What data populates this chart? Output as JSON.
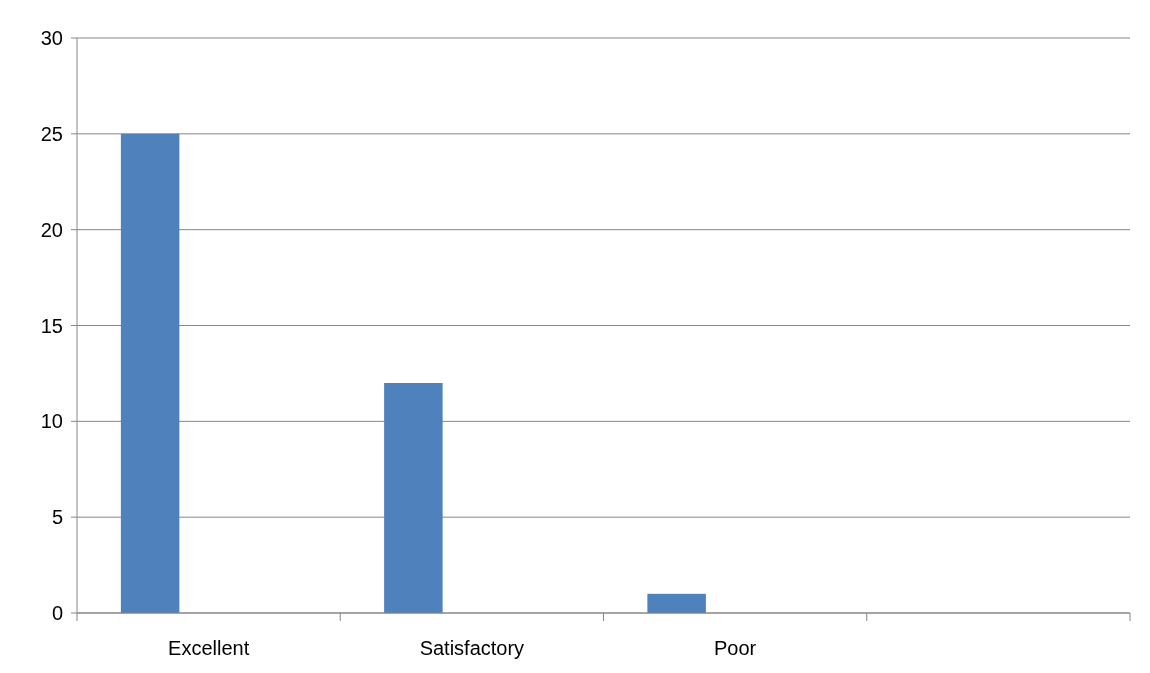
{
  "chart_data": {
    "type": "bar",
    "categories": [
      "Excellent",
      "Satisfactory",
      "Poor",
      null
    ],
    "values": [
      25,
      12,
      1,
      null
    ],
    "color": "#4f81bd",
    "ylim": [
      0,
      30
    ],
    "yticks": [
      0,
      5,
      10,
      15,
      20,
      25,
      30
    ],
    "grid": "y"
  }
}
